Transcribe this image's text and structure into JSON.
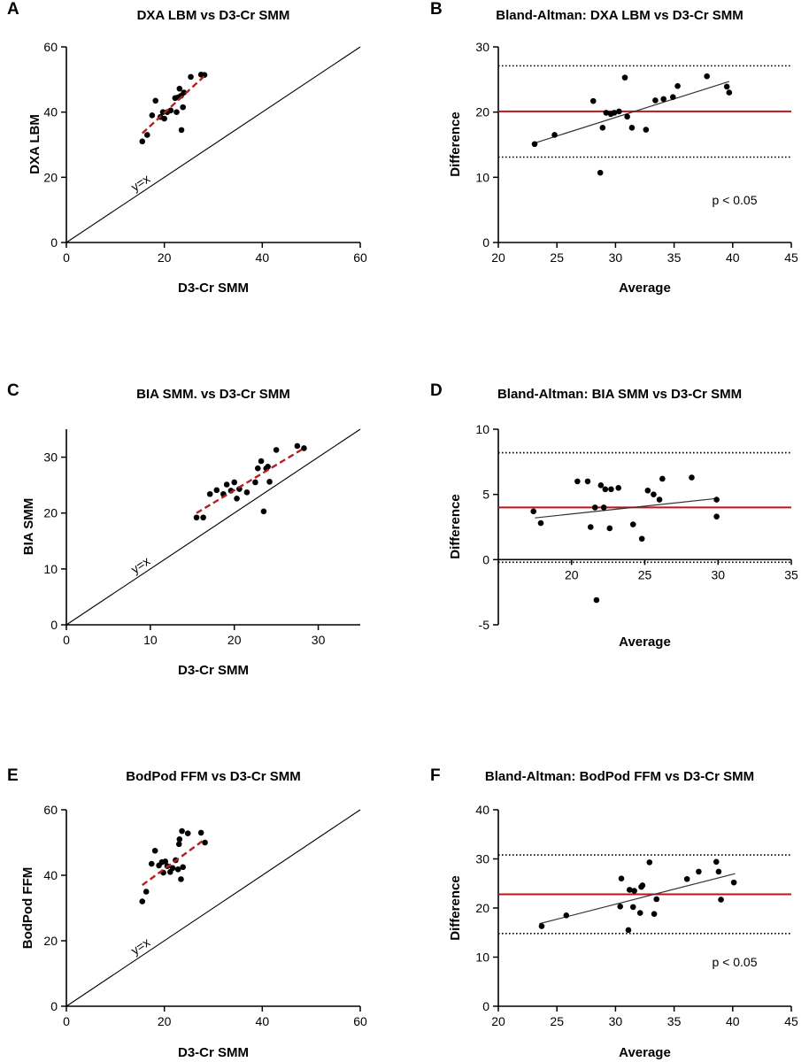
{
  "colors": {
    "point": "#000000",
    "axis": "#000000",
    "identity_line": "#000000",
    "regression_dashed": "#b22222",
    "mean_difference": "#c0121b",
    "limits_of_agreement": "#000000",
    "trend_line": "#333333"
  },
  "chart_data": [
    {
      "panel": "A",
      "type": "scatter",
      "title": "DXA LBM vs D3-Cr SMM",
      "xlabel": "D3-Cr SMM",
      "ylabel": "DXA LBM",
      "xlim": [
        0,
        60
      ],
      "ylim": [
        0,
        60
      ],
      "xticks": [
        0,
        20,
        40,
        60
      ],
      "yticks": [
        0,
        20,
        40,
        60
      ],
      "identity_line": {
        "label": "y=x"
      },
      "regression_line": {
        "style": "dashed",
        "x": [
          15.5,
          28.5
        ],
        "y": [
          33.5,
          51.5
        ]
      },
      "points": [
        [
          15.5,
          31
        ],
        [
          16.5,
          33
        ],
        [
          17.5,
          39
        ],
        [
          18.2,
          43.5
        ],
        [
          19.2,
          38.5
        ],
        [
          19.7,
          40
        ],
        [
          20,
          38
        ],
        [
          20.6,
          40
        ],
        [
          21.3,
          40.5
        ],
        [
          22.2,
          44.3
        ],
        [
          22.5,
          40
        ],
        [
          22.8,
          44.5
        ],
        [
          23.1,
          47.2
        ],
        [
          23.4,
          45
        ],
        [
          23.5,
          34.5
        ],
        [
          23.8,
          41.5
        ],
        [
          24,
          46
        ],
        [
          25.4,
          50.8
        ],
        [
          27.5,
          51.5
        ],
        [
          28.2,
          51.4
        ]
      ]
    },
    {
      "panel": "B",
      "type": "scatter",
      "title": "Bland-Altman: DXA LBM vs D3-Cr SMM",
      "xlabel": "Average",
      "ylabel": "Difference",
      "xlim": [
        20,
        45
      ],
      "ylim": [
        0,
        30
      ],
      "xticks": [
        20,
        25,
        30,
        35,
        40,
        45
      ],
      "yticks": [
        0,
        10,
        20,
        30
      ],
      "mean_difference": 20.1,
      "limits_of_agreement": [
        13.1,
        27.1
      ],
      "trend_line": {
        "x": [
          23,
          39.7
        ],
        "y": [
          15.2,
          24.7
        ]
      },
      "annotation": "p < 0.05",
      "points": [
        [
          23.1,
          15.1
        ],
        [
          24.8,
          16.5
        ],
        [
          28.1,
          21.7
        ],
        [
          28.7,
          10.7
        ],
        [
          28.9,
          17.6
        ],
        [
          29.2,
          19.9
        ],
        [
          29.6,
          19.7
        ],
        [
          29.9,
          19.9
        ],
        [
          30.3,
          20.1
        ],
        [
          30.8,
          25.3
        ],
        [
          31,
          19.3
        ],
        [
          31.4,
          17.6
        ],
        [
          32.6,
          17.3
        ],
        [
          33.4,
          21.8
        ],
        [
          34.1,
          22
        ],
        [
          34.9,
          22.3
        ],
        [
          35.3,
          24
        ],
        [
          37.8,
          25.5
        ],
        [
          39.5,
          23.9
        ],
        [
          39.7,
          23
        ]
      ]
    },
    {
      "panel": "C",
      "type": "scatter",
      "title": "BIA SMM. vs D3-Cr SMM",
      "xlabel": "D3-Cr SMM",
      "ylabel": "BIA SMM",
      "xlim": [
        0,
        35
      ],
      "ylim": [
        0,
        35
      ],
      "xticks": [
        0,
        10,
        20,
        30
      ],
      "yticks": [
        0,
        10,
        20,
        30
      ],
      "identity_line": {
        "label": "y=x"
      },
      "regression_line": {
        "style": "dashed",
        "x": [
          15.5,
          28.3
        ],
        "y": [
          20,
          31.6
        ]
      },
      "points": [
        [
          15.5,
          19.2
        ],
        [
          16.3,
          19.2
        ],
        [
          17.1,
          23.4
        ],
        [
          17.9,
          24.1
        ],
        [
          18.7,
          23.4
        ],
        [
          19.1,
          25.1
        ],
        [
          19.6,
          24
        ],
        [
          20,
          25.5
        ],
        [
          20.3,
          22.6
        ],
        [
          20.6,
          24.3
        ],
        [
          21.5,
          23.7
        ],
        [
          22.5,
          25.5
        ],
        [
          22.8,
          28
        ],
        [
          23.2,
          29.3
        ],
        [
          23.5,
          20.3
        ],
        [
          23.8,
          28
        ],
        [
          24,
          28.3
        ],
        [
          24.2,
          25.6
        ],
        [
          25,
          31.3
        ],
        [
          27.5,
          32
        ],
        [
          28.3,
          31.6
        ]
      ]
    },
    {
      "panel": "D",
      "type": "scatter",
      "title": "Bland-Altman: BIA SMM vs D3-Cr SMM",
      "xlabel": "Average",
      "ylabel": "Difference",
      "xlim": [
        15,
        35
      ],
      "ylim": [
        -5,
        10
      ],
      "xticks": [
        20,
        25,
        30,
        35
      ],
      "yticks": [
        -5,
        0,
        5,
        10
      ],
      "mean_difference": 4.0,
      "limits_of_agreement": [
        -0.2,
        8.2
      ],
      "trend_line": {
        "x": [
          17.5,
          30
        ],
        "y": [
          3.2,
          4.7
        ]
      },
      "points": [
        [
          17.4,
          3.7
        ],
        [
          17.9,
          2.8
        ],
        [
          20.4,
          6
        ],
        [
          21.1,
          6
        ],
        [
          21.3,
          2.5
        ],
        [
          21.6,
          4
        ],
        [
          21.7,
          -3.1
        ],
        [
          22,
          5.7
        ],
        [
          22.2,
          4
        ],
        [
          22.3,
          5.4
        ],
        [
          22.6,
          2.4
        ],
        [
          22.7,
          5.4
        ],
        [
          23.2,
          5.5
        ],
        [
          24.2,
          2.7
        ],
        [
          24.8,
          1.6
        ],
        [
          25.2,
          5.3
        ],
        [
          25.6,
          5
        ],
        [
          26,
          4.6
        ],
        [
          26.2,
          6.2
        ],
        [
          28.2,
          6.3
        ],
        [
          29.9,
          4.6
        ],
        [
          29.9,
          3.3
        ]
      ]
    },
    {
      "panel": "E",
      "type": "scatter",
      "title": "BodPod FFM vs D3-Cr SMM",
      "xlabel": "D3-Cr SMM",
      "ylabel": "BodPod FFM",
      "xlim": [
        0,
        60
      ],
      "ylim": [
        0,
        60
      ],
      "xticks": [
        0,
        20,
        40,
        60
      ],
      "yticks": [
        0,
        20,
        40,
        60
      ],
      "identity_line": {
        "label": "y=x"
      },
      "regression_line": {
        "style": "dashed",
        "x": [
          15.5,
          28.3
        ],
        "y": [
          37,
          51
        ]
      },
      "points": [
        [
          15.5,
          32
        ],
        [
          16.3,
          35
        ],
        [
          17.4,
          43.5
        ],
        [
          18.1,
          47.5
        ],
        [
          18.9,
          43
        ],
        [
          19.5,
          44
        ],
        [
          19.8,
          40.8
        ],
        [
          20.2,
          44.2
        ],
        [
          20.6,
          42.8
        ],
        [
          21.2,
          41
        ],
        [
          21.7,
          42.2
        ],
        [
          22.3,
          44.6
        ],
        [
          22.8,
          41.8
        ],
        [
          23,
          49.5
        ],
        [
          23.1,
          51
        ],
        [
          23.4,
          38.8
        ],
        [
          23.6,
          53.5
        ],
        [
          23.8,
          42.5
        ],
        [
          24.8,
          52.8
        ],
        [
          27.5,
          53
        ],
        [
          28.3,
          50
        ]
      ]
    },
    {
      "panel": "F",
      "type": "scatter",
      "title": "Bland-Altman: BodPod FFM vs D3-Cr SMM",
      "xlabel": "Average",
      "ylabel": "Difference",
      "xlim": [
        20,
        45
      ],
      "ylim": [
        0,
        40
      ],
      "xticks": [
        20,
        25,
        30,
        35,
        40,
        45
      ],
      "yticks": [
        0,
        10,
        20,
        30,
        40
      ],
      "mean_difference": 22.8,
      "limits_of_agreement": [
        14.8,
        30.8
      ],
      "trend_line": {
        "x": [
          23.5,
          40.2
        ],
        "y": [
          16.8,
          27
        ]
      },
      "annotation": "p < 0.05",
      "points": [
        [
          23.7,
          16.3
        ],
        [
          25.8,
          18.5
        ],
        [
          30.4,
          20.3
        ],
        [
          30.5,
          26
        ],
        [
          31.1,
          15.5
        ],
        [
          31.2,
          23.7
        ],
        [
          31.5,
          20.2
        ],
        [
          31.6,
          23.5
        ],
        [
          32.1,
          19
        ],
        [
          32.2,
          24.3
        ],
        [
          32.3,
          24.6
        ],
        [
          32.9,
          29.3
        ],
        [
          33.3,
          18.8
        ],
        [
          33.5,
          21.8
        ],
        [
          36.1,
          25.9
        ],
        [
          37.1,
          27.4
        ],
        [
          38.6,
          29.4
        ],
        [
          38.8,
          27.4
        ],
        [
          39,
          21.7
        ],
        [
          40.1,
          25.2
        ]
      ]
    }
  ]
}
